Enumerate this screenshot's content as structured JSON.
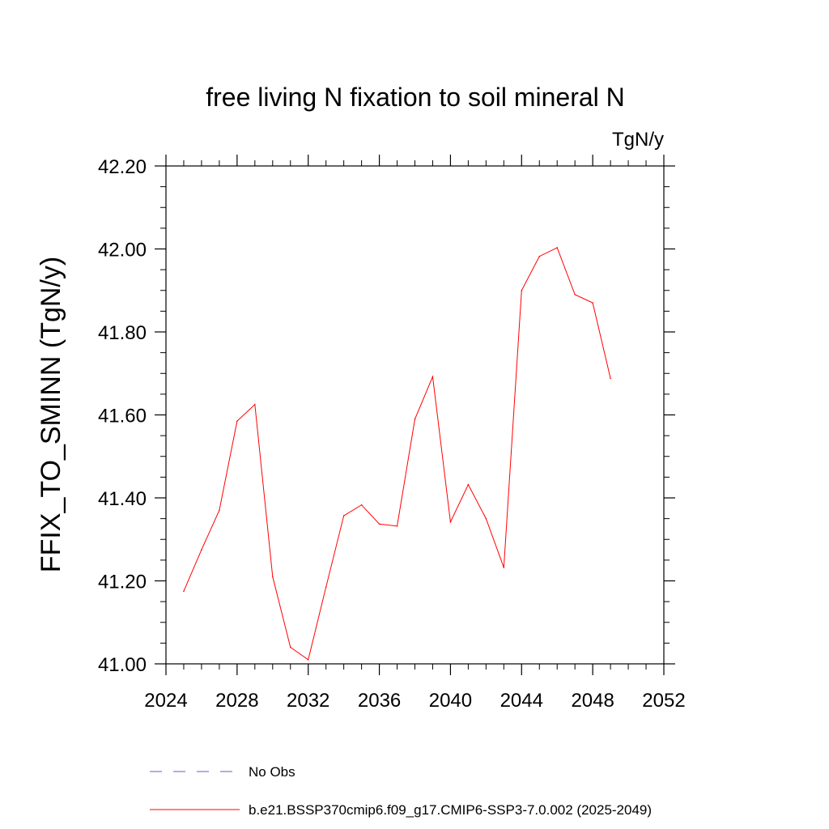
{
  "chart_data": {
    "type": "line",
    "title": "free living N fixation to soil mineral N",
    "units_label": "TgN/y",
    "xlabel": "",
    "ylabel": "FFIX_TO_SMINN  (TgN/y)",
    "xlim": [
      2024,
      2052
    ],
    "ylim": [
      41.0,
      42.2
    ],
    "x_ticks": [
      2024,
      2028,
      2032,
      2036,
      2040,
      2044,
      2048,
      2052
    ],
    "x_tick_labels": [
      "2024",
      "2028",
      "2032",
      "2036",
      "2040",
      "2044",
      "2048",
      "2052"
    ],
    "y_ticks": [
      41.0,
      41.2,
      41.4,
      41.6,
      41.8,
      42.0,
      42.2
    ],
    "y_tick_labels": [
      "41.00",
      "41.20",
      "41.40",
      "41.60",
      "41.80",
      "42.00",
      "42.20"
    ],
    "grid": false,
    "series": [
      {
        "name": "b.e21.BSSP370cmip6.f09_g17.CMIP6-SSP3-7.0.002 (2025-2049)",
        "color": "#ff0000",
        "style": "solid",
        "x": [
          2025,
          2026,
          2027,
          2028,
          2029,
          2030,
          2031,
          2032,
          2033,
          2034,
          2035,
          2036,
          2037,
          2038,
          2039,
          2040,
          2041,
          2042,
          2043,
          2044,
          2045,
          2046,
          2047,
          2048,
          2049
        ],
        "values": [
          41.175,
          41.275,
          41.37,
          41.585,
          41.625,
          41.21,
          41.04,
          41.01,
          41.185,
          41.357,
          41.383,
          41.337,
          41.332,
          41.59,
          41.692,
          41.342,
          41.432,
          41.35,
          41.232,
          41.9,
          41.982,
          42.003,
          41.89,
          41.87,
          41.688
        ]
      }
    ],
    "legend": [
      {
        "label": "No Obs",
        "color": "#6a5acd",
        "style": "dashed"
      },
      {
        "label": "b.e21.BSSP370cmip6.f09_g17.CMIP6-SSP3-7.0.002 (2025-2049)",
        "color": "#ff0000",
        "style": "solid"
      }
    ],
    "legend_position": "bottom"
  }
}
